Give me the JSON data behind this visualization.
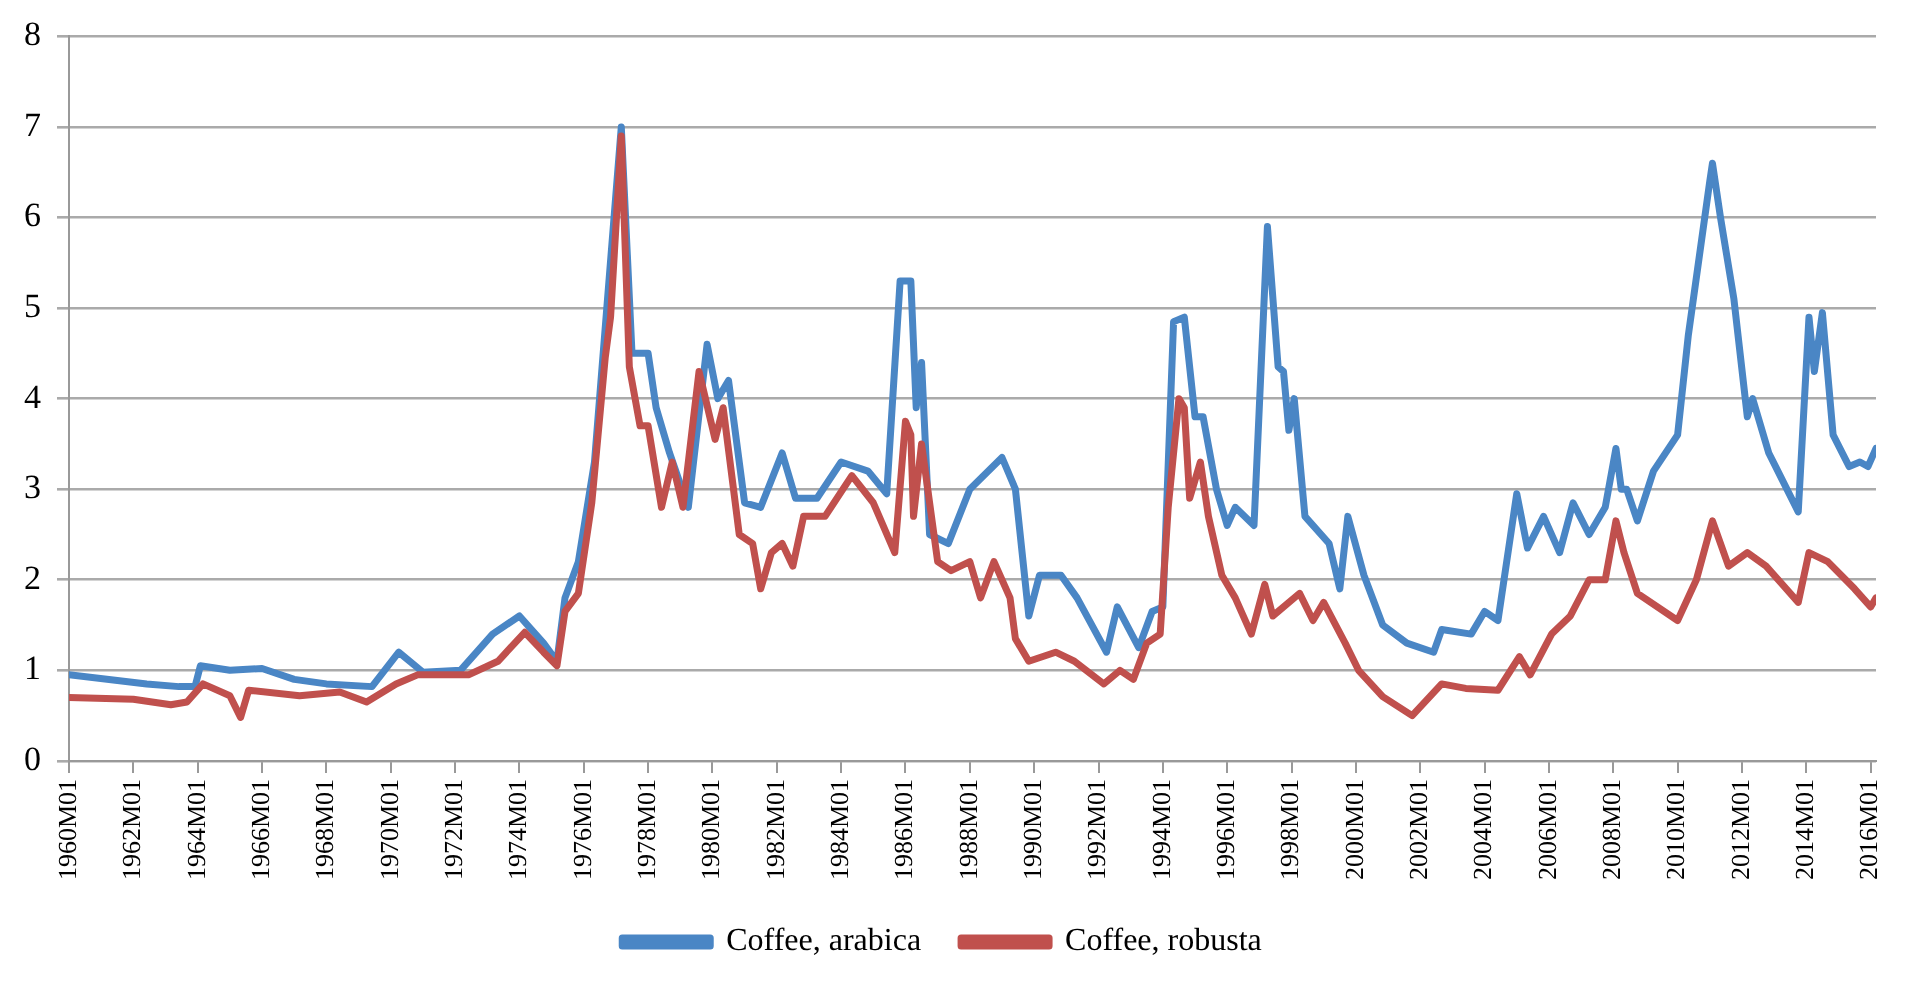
{
  "chart_data": {
    "type": "line",
    "xlim": [
      "1960-01",
      "2016-03"
    ],
    "xticks": [
      {
        "value": "1960-01",
        "label": "1960M01"
      },
      {
        "value": "1962-01",
        "label": "1962M01"
      },
      {
        "value": "1964-01",
        "label": "1964M01"
      },
      {
        "value": "1966-01",
        "label": "1966M01"
      },
      {
        "value": "1968-01",
        "label": "1968M01"
      },
      {
        "value": "1970-01",
        "label": "1970M01"
      },
      {
        "value": "1972-01",
        "label": "1972M01"
      },
      {
        "value": "1974-01",
        "label": "1974M01"
      },
      {
        "value": "1976-01",
        "label": "1976M01"
      },
      {
        "value": "1978-01",
        "label": "1978M01"
      },
      {
        "value": "1980-01",
        "label": "1980M01"
      },
      {
        "value": "1982-01",
        "label": "1982M01"
      },
      {
        "value": "1984-01",
        "label": "1984M01"
      },
      {
        "value": "1986-01",
        "label": "1986M01"
      },
      {
        "value": "1988-01",
        "label": "1988M01"
      },
      {
        "value": "1990-01",
        "label": "1990M01"
      },
      {
        "value": "1992-01",
        "label": "1992M01"
      },
      {
        "value": "1994-01",
        "label": "1994M01"
      },
      {
        "value": "1996-01",
        "label": "1996M01"
      },
      {
        "value": "1998-01",
        "label": "1998M01"
      },
      {
        "value": "2000-01",
        "label": "2000M01"
      },
      {
        "value": "2002-01",
        "label": "2002M01"
      },
      {
        "value": "2004-01",
        "label": "2004M01"
      },
      {
        "value": "2006-01",
        "label": "2006M01"
      },
      {
        "value": "2008-01",
        "label": "2008M01"
      },
      {
        "value": "2010-01",
        "label": "2010M01"
      },
      {
        "value": "2012-01",
        "label": "2012M01"
      },
      {
        "value": "2014-01",
        "label": "2014M01"
      },
      {
        "value": "2016-01",
        "label": "2016M01"
      }
    ],
    "ylim": [
      0,
      8
    ],
    "yticks": [
      0,
      1,
      2,
      3,
      4,
      5,
      6,
      7,
      8
    ],
    "grid": "y",
    "legend": "bottom",
    "marker": "none",
    "line_style": "solid",
    "series": [
      {
        "name": "Coffee, arabica",
        "color": "#4a86c5",
        "x": [
          "1960-01",
          "1962-06",
          "1963-06",
          "1963-12",
          "1964-02",
          "1965-01",
          "1966-01",
          "1967-01",
          "1968-01",
          "1969-06",
          "1970-04",
          "1971-01",
          "1972-03",
          "1973-03",
          "1974-01",
          "1974-10",
          "1975-03",
          "1975-06",
          "1975-11",
          "1976-05",
          "1977-03",
          "1977-07",
          "1978-01",
          "1978-04",
          "1978-09",
          "1979-04",
          "1979-11",
          "1980-03",
          "1980-07",
          "1981-01",
          "1981-07",
          "1982-03",
          "1982-08",
          "1983-04",
          "1984-01",
          "1984-11",
          "1985-06",
          "1985-11",
          "1986-03",
          "1986-05",
          "1986-07",
          "1986-10",
          "1987-05",
          "1988-01",
          "1989-01",
          "1989-06",
          "1989-11",
          "1990-03",
          "1990-11",
          "1991-05",
          "1992-04",
          "1992-08",
          "1993-04",
          "1993-09",
          "1994-01",
          "1994-05",
          "1994-09",
          "1995-01",
          "1995-04",
          "1995-09",
          "1996-01",
          "1996-04",
          "1996-11",
          "1997-04",
          "1997-08",
          "1997-10",
          "1997-12",
          "1998-02",
          "1998-06",
          "1999-03",
          "1999-07",
          "1999-10",
          "2000-04",
          "2000-11",
          "2001-08",
          "2002-06",
          "2002-09",
          "2003-08",
          "2004-01",
          "2004-06",
          "2005-01",
          "2005-05",
          "2005-11",
          "2006-05",
          "2006-10",
          "2007-04",
          "2007-10",
          "2008-02",
          "2008-04",
          "2008-06",
          "2008-10",
          "2009-04",
          "2010-01",
          "2010-05",
          "2011-01",
          "2011-02",
          "2011-05",
          "2011-10",
          "2012-03",
          "2012-05",
          "2012-11",
          "2013-10",
          "2014-02",
          "2014-04",
          "2014-07",
          "2014-11",
          "2015-05",
          "2015-09",
          "2015-12",
          "2016-03"
        ],
        "values": [
          0.95,
          0.85,
          0.82,
          0.82,
          1.05,
          1.0,
          1.02,
          0.9,
          0.85,
          0.82,
          1.2,
          0.98,
          1.0,
          1.4,
          1.6,
          1.3,
          1.1,
          1.8,
          2.2,
          3.3,
          7.0,
          4.5,
          4.5,
          3.9,
          3.4,
          2.8,
          4.6,
          4.0,
          4.2,
          2.85,
          2.8,
          3.4,
          2.9,
          2.9,
          3.3,
          3.2,
          2.95,
          5.3,
          5.3,
          3.9,
          4.4,
          2.5,
          2.4,
          3.0,
          3.35,
          3.0,
          1.6,
          2.05,
          2.05,
          1.8,
          1.2,
          1.7,
          1.25,
          1.65,
          1.7,
          4.85,
          4.9,
          3.8,
          3.8,
          3.0,
          2.6,
          2.8,
          2.6,
          5.9,
          4.35,
          4.3,
          3.65,
          4.0,
          2.7,
          2.4,
          1.9,
          2.7,
          2.05,
          1.5,
          1.3,
          1.2,
          1.45,
          1.4,
          1.65,
          1.55,
          2.95,
          2.35,
          2.7,
          2.3,
          2.85,
          2.5,
          2.8,
          3.45,
          3.0,
          3.0,
          2.65,
          3.2,
          3.6,
          4.7,
          6.4,
          6.6,
          6.0,
          5.1,
          3.8,
          4.0,
          3.4,
          2.75,
          4.9,
          4.3,
          4.95,
          3.6,
          3.25,
          3.3,
          3.25,
          3.45
        ]
      },
      {
        "name": "Coffee, robusta",
        "color": "#c0504d",
        "x": [
          "1960-01",
          "1962-01",
          "1963-03",
          "1963-09",
          "1964-03",
          "1965-01",
          "1965-05",
          "1965-08",
          "1967-03",
          "1968-06",
          "1969-04",
          "1970-03",
          "1970-11",
          "1972-06",
          "1973-05",
          "1974-03",
          "1974-10",
          "1975-03",
          "1975-06",
          "1975-11",
          "1976-04",
          "1976-09",
          "1976-11",
          "1977-03",
          "1977-06",
          "1977-10",
          "1978-01",
          "1978-06",
          "1978-10",
          "1979-02",
          "1979-08",
          "1980-02",
          "1980-05",
          "1980-11",
          "1981-04",
          "1981-07",
          "1981-11",
          "1982-03",
          "1982-07",
          "1982-11",
          "1983-07",
          "1984-05",
          "1985-01",
          "1985-09",
          "1986-01",
          "1986-03",
          "1986-04",
          "1986-07",
          "1987-01",
          "1987-06",
          "1988-01",
          "1988-05",
          "1988-10",
          "1989-04",
          "1989-06",
          "1989-11",
          "1990-09",
          "1991-04",
          "1992-03",
          "1992-09",
          "1993-02",
          "1993-07",
          "1993-12",
          "1994-03",
          "1994-07",
          "1994-09",
          "1994-11",
          "1995-03",
          "1995-06",
          "1995-11",
          "1996-04",
          "1996-10",
          "1997-03",
          "1997-06",
          "1998-04",
          "1998-09",
          "1999-01",
          "1999-09",
          "2000-02",
          "2000-11",
          "2001-10",
          "2002-09",
          "2003-06",
          "2004-06",
          "2005-02",
          "2005-06",
          "2006-02",
          "2006-09",
          "2007-04",
          "2007-10",
          "2008-02",
          "2008-05",
          "2008-10",
          "2010-01",
          "2010-08",
          "2011-02",
          "2011-08",
          "2012-03",
          "2012-10",
          "2013-10",
          "2014-02",
          "2014-09",
          "2015-07",
          "2016-01",
          "2016-03"
        ],
        "values": [
          0.7,
          0.68,
          0.62,
          0.65,
          0.85,
          0.72,
          0.48,
          0.78,
          0.72,
          0.76,
          0.65,
          0.85,
          0.95,
          0.95,
          1.1,
          1.42,
          1.2,
          1.05,
          1.65,
          1.85,
          2.85,
          4.45,
          4.9,
          6.9,
          4.35,
          3.7,
          3.7,
          2.8,
          3.3,
          2.8,
          4.3,
          3.55,
          3.9,
          2.5,
          2.4,
          1.9,
          2.3,
          2.4,
          2.15,
          2.7,
          2.7,
          3.15,
          2.85,
          2.3,
          3.75,
          3.6,
          2.7,
          3.5,
          2.2,
          2.1,
          2.2,
          1.8,
          2.2,
          1.8,
          1.35,
          1.1,
          1.2,
          1.1,
          0.85,
          1.0,
          0.9,
          1.3,
          1.4,
          2.8,
          4.0,
          3.9,
          2.9,
          3.3,
          2.7,
          2.05,
          1.8,
          1.4,
          1.95,
          1.6,
          1.85,
          1.55,
          1.75,
          1.3,
          1.0,
          0.71,
          0.5,
          0.85,
          0.8,
          0.78,
          1.15,
          0.95,
          1.4,
          1.6,
          2.0,
          2.0,
          2.65,
          2.3,
          1.85,
          1.55,
          2.0,
          2.65,
          2.15,
          2.3,
          2.15,
          1.75,
          2.3,
          2.2,
          1.9,
          1.7,
          1.8
        ]
      }
    ]
  }
}
